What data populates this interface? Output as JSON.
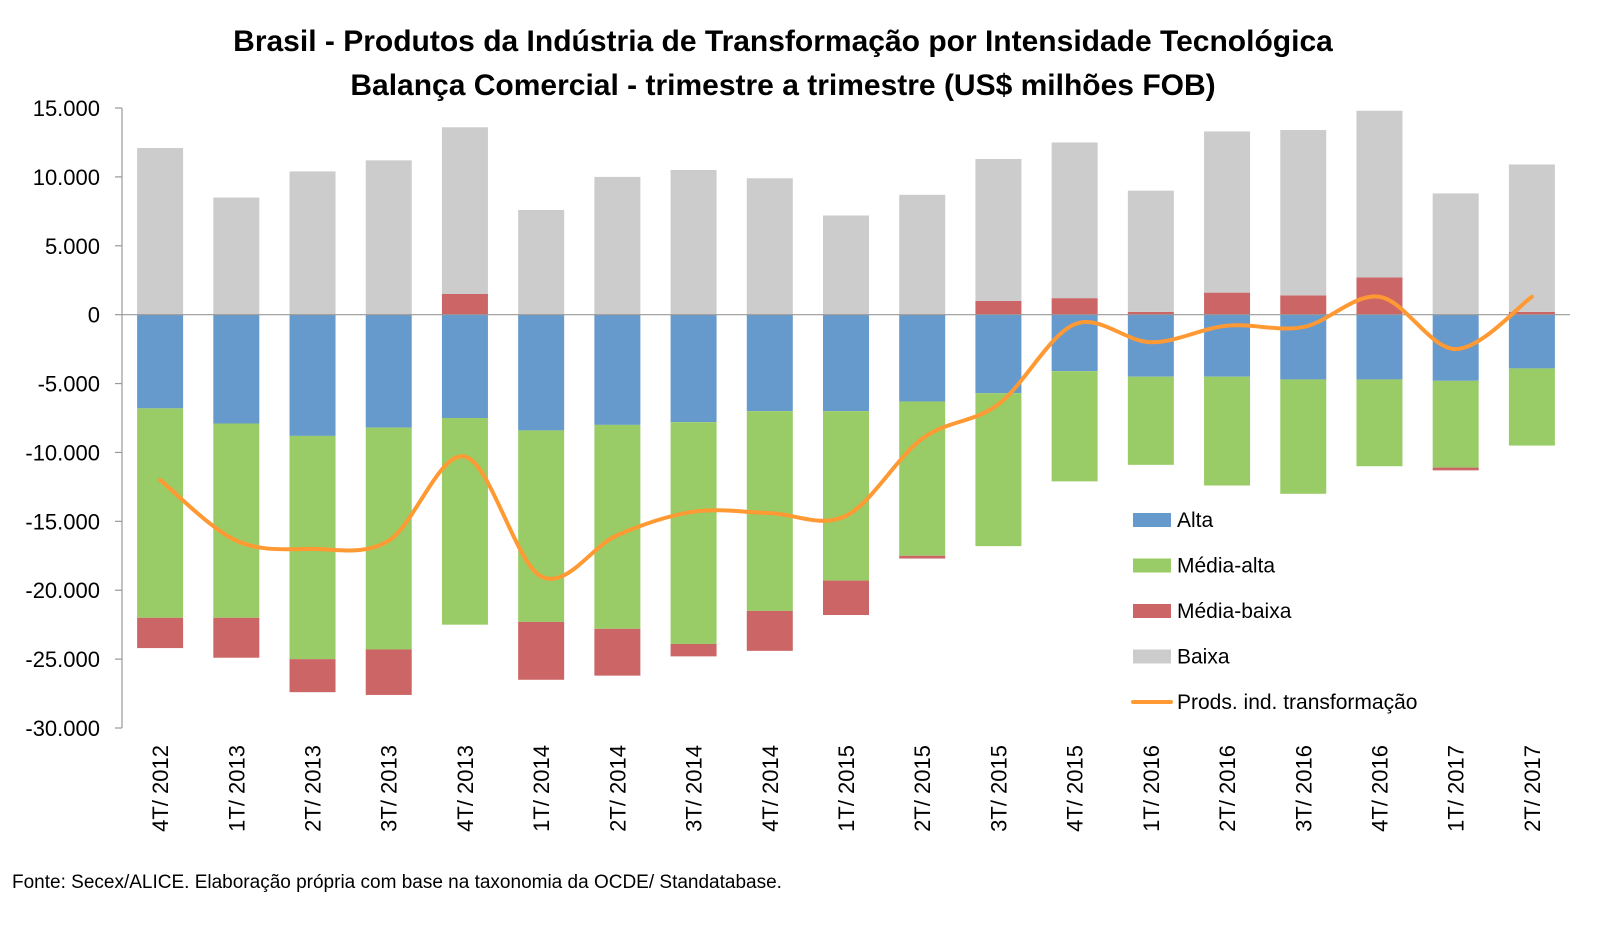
{
  "chart_data": {
    "type": "bar",
    "stacked": true,
    "title": "Brasil - Produtos da Indústria de Transformação por Intensidade Tecnológica",
    "subtitle": "Balança Comercial - trimestre a trimestre (US$ milhões FOB)",
    "source": "Fonte: Secex/ALICE. Elaboração própria com base na taxonomia da OCDE/ Standatabase.",
    "categories": [
      "4T/ 2012",
      "1T/ 2013",
      "2T/ 2013",
      "3T/ 2013",
      "4T/ 2013",
      "1T/ 2014",
      "2T/ 2014",
      "3T/ 2014",
      "4T/ 2014",
      "1T/ 2015",
      "2T/ 2015",
      "3T/ 2015",
      "4T/ 2015",
      "1T/ 2016",
      "2T/ 2016",
      "3T/ 2016",
      "4T/ 2016",
      "1T/ 2017",
      "2T/ 2017"
    ],
    "ylim": [
      -30000,
      15000
    ],
    "yticks": [
      15000,
      10000,
      5000,
      0,
      -5000,
      -10000,
      -15000,
      -20000,
      -25000,
      -30000
    ],
    "ytick_labels": [
      "15.000",
      "10.000",
      "5.000",
      "0",
      "-5.000",
      "-10.000",
      "-15.000",
      "-20.000",
      "-25.000",
      "-30.000"
    ],
    "grid": false,
    "legend_position": "right",
    "series": [
      {
        "name": "Alta",
        "kind": "bar",
        "color": "#6699cc",
        "values": [
          -6800,
          -7900,
          -8800,
          -8200,
          -7500,
          -8400,
          -8000,
          -7800,
          -7000,
          -7000,
          -6300,
          -5700,
          -4100,
          -4500,
          -4500,
          -4700,
          -4700,
          -4800,
          -3900
        ]
      },
      {
        "name": "Média-alta",
        "kind": "bar",
        "color": "#99cc66",
        "values": [
          -15200,
          -14100,
          -16200,
          -16100,
          -15000,
          -13900,
          -14800,
          -16100,
          -14500,
          -12300,
          -11200,
          -11100,
          -8000,
          -6400,
          -7900,
          -8300,
          -6300,
          -6300,
          -5600
        ]
      },
      {
        "name": "Média-baixa",
        "kind": "bar",
        "color": "#cc6666",
        "values": [
          -2200,
          -2900,
          -2400,
          -3300,
          1500,
          -4200,
          -3400,
          -900,
          -2900,
          -2500,
          -200,
          1000,
          1200,
          200,
          1600,
          1400,
          2700,
          -200,
          200
        ]
      },
      {
        "name": "Baixa",
        "kind": "bar",
        "color": "#cccccc",
        "values": [
          12100,
          8500,
          10400,
          11200,
          12100,
          7600,
          10000,
          10500,
          9900,
          7200,
          8700,
          10300,
          11300,
          8800,
          11700,
          12000,
          12100,
          8800,
          10700
        ]
      },
      {
        "name": "Prods. ind. transformação",
        "kind": "line",
        "color": "#ff9933",
        "values": [
          -12000,
          -16400,
          -17000,
          -16400,
          -10300,
          -19000,
          -16000,
          -14300,
          -14400,
          -14600,
          -9000,
          -6500,
          -700,
          -2000,
          -800,
          -900,
          1300,
          -2500,
          1300
        ]
      }
    ]
  }
}
